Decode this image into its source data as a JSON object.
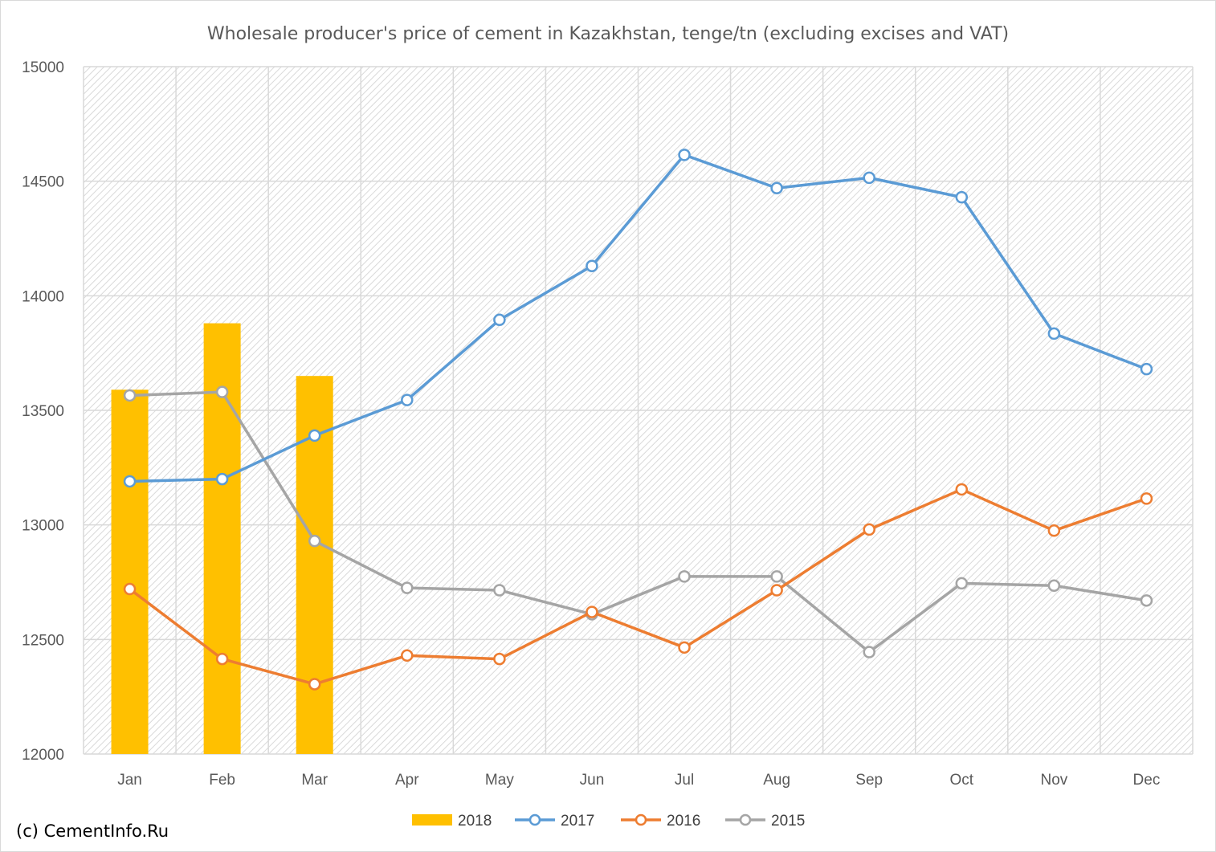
{
  "chart_data": {
    "type": "bar",
    "title": "Wholesale producer's price of cement in Kazakhstan, tenge/tn (excluding excises and VAT)",
    "xlabel": "",
    "ylabel": "",
    "categories": [
      "Jan",
      "Feb",
      "Mar",
      "Apr",
      "May",
      "Jun",
      "Jul",
      "Aug",
      "Sep",
      "Oct",
      "Nov",
      "Dec"
    ],
    "ylim": [
      12000,
      15000
    ],
    "yticks": [
      12000,
      12500,
      13000,
      13500,
      14000,
      14500,
      15000
    ],
    "grid": true,
    "legend_position": "bottom",
    "series": [
      {
        "name": "2018",
        "type": "bar",
        "color": "#FFC000",
        "values": [
          13590,
          13880,
          13650,
          null,
          null,
          null,
          null,
          null,
          null,
          null,
          null,
          null
        ]
      },
      {
        "name": "2017",
        "type": "line",
        "color": "#5B9BD5",
        "values": [
          13190,
          13200,
          13390,
          13545,
          13895,
          14130,
          14615,
          14470,
          14515,
          14430,
          13835,
          13680
        ]
      },
      {
        "name": "2016",
        "type": "line",
        "color": "#ED7D31",
        "values": [
          12720,
          12415,
          12305,
          12430,
          12415,
          12620,
          12465,
          12715,
          12980,
          13155,
          12975,
          13115
        ]
      },
      {
        "name": "2015",
        "type": "line",
        "color": "#A5A5A5",
        "values": [
          13565,
          13580,
          12930,
          12725,
          12715,
          12610,
          12775,
          12775,
          12445,
          12745,
          12735,
          12670
        ]
      }
    ]
  },
  "credit": "(c) CementInfo.Ru"
}
